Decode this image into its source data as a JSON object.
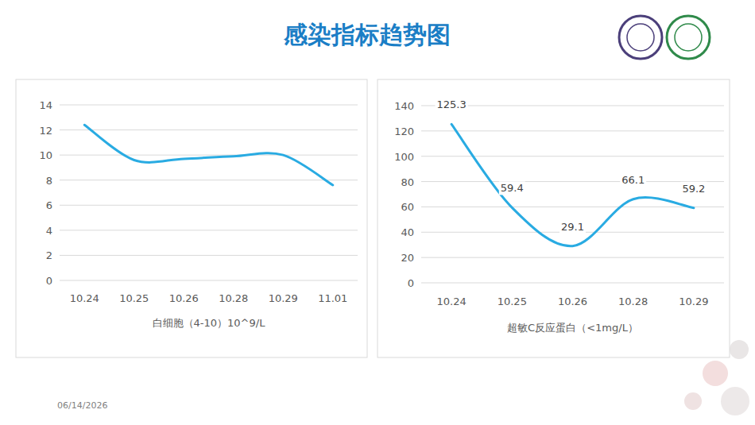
{
  "title": "感染指标趋势图",
  "date": "06/14/2026",
  "chart_data": [
    {
      "type": "line",
      "x_label": "白细胞（4-10）10^9/L",
      "categories": [
        "10.24",
        "10.25",
        "10.26",
        "10.28",
        "10.29",
        "11.01"
      ],
      "series": [
        {
          "name": "白细胞",
          "color": "#29abe2",
          "values": [
            12.4,
            9.6,
            9.7,
            9.9,
            10.0,
            7.6
          ]
        }
      ],
      "ylim": [
        0,
        14
      ],
      "yticks": [
        0,
        2,
        4,
        6,
        8,
        10,
        12,
        14
      ],
      "grid": true,
      "data_labels": false,
      "line_style": "smooth"
    },
    {
      "type": "line",
      "x_label": "超敏C反应蛋白（<1mg/L）",
      "categories": [
        "10.24",
        "10.25",
        "10.26",
        "10.28",
        "10.29"
      ],
      "series": [
        {
          "name": "超敏C反应蛋白",
          "color": "#29abe2",
          "values": [
            125.3,
            59.4,
            29.1,
            66.1,
            59.2
          ]
        }
      ],
      "ylim": [
        0,
        140
      ],
      "yticks": [
        0,
        20,
        40,
        60,
        80,
        100,
        120,
        140
      ],
      "grid": true,
      "data_labels": true,
      "line_style": "smooth"
    }
  ]
}
